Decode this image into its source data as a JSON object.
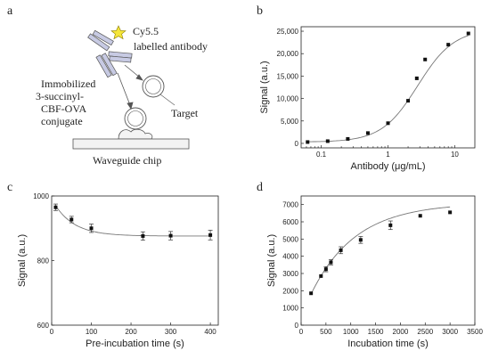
{
  "panel_letters": {
    "a": "a",
    "b": "b",
    "c": "c",
    "d": "d"
  },
  "schematic": {
    "label_dye": "Cy5.5",
    "label_antibody": "labelled antibody",
    "label_immobilized": [
      "Immobilized",
      "3-succinyl-",
      "CBF-OVA",
      "conjugate"
    ],
    "label_target": "Target",
    "label_chip": "Waveguide chip",
    "colors": {
      "star": "#f5e63a",
      "antibody": "#8a8fb8",
      "outline": "#555555",
      "chip": "#f2f2f2"
    }
  },
  "chart_data": [
    {
      "panel": "b",
      "type": "scatter",
      "xlabel": "Antibody (μg/mL)",
      "ylabel": "Signal (a.u.)",
      "xscale": "log",
      "xlim": [
        0.05,
        20
      ],
      "ylim": [
        -1000,
        26000
      ],
      "xticks": [
        0.1,
        1,
        10
      ],
      "xtick_labels": [
        "0.1",
        "1",
        "10"
      ],
      "yticks": [
        0,
        5000,
        10000,
        15000,
        20000,
        25000
      ],
      "ytick_labels": [
        "0",
        "5,000",
        "10,000",
        "15,000",
        "20,000",
        "25,000"
      ],
      "points": [
        {
          "x": 0.0625,
          "y": 300
        },
        {
          "x": 0.125,
          "y": 500
        },
        {
          "x": 0.25,
          "y": 1000
        },
        {
          "x": 0.5,
          "y": 2300
        },
        {
          "x": 1,
          "y": 4500
        },
        {
          "x": 2,
          "y": 9500
        },
        {
          "x": 2.7,
          "y": 14500
        },
        {
          "x": 3.6,
          "y": 18700
        },
        {
          "x": 8,
          "y": 22000
        },
        {
          "x": 16,
          "y": 24500
        }
      ],
      "fit": "sigmoid"
    },
    {
      "panel": "c",
      "type": "scatter",
      "xlabel": "Pre-incubation time (s)",
      "ylabel": "Signal (a.u.)",
      "xlim": [
        0,
        420
      ],
      "ylim": [
        600,
        1000
      ],
      "xticks": [
        0,
        100,
        200,
        300,
        400
      ],
      "xtick_labels": [
        "0",
        "100",
        "200",
        "300",
        "400"
      ],
      "yticks": [
        600,
        800,
        1000
      ],
      "ytick_labels": [
        "600",
        "800",
        "1000"
      ],
      "points": [
        {
          "x": 10,
          "y": 965,
          "err": 10
        },
        {
          "x": 50,
          "y": 927,
          "err": 10
        },
        {
          "x": 100,
          "y": 900,
          "err": 13
        },
        {
          "x": 230,
          "y": 876,
          "err": 13
        },
        {
          "x": 300,
          "y": 877,
          "err": 13
        },
        {
          "x": 400,
          "y": 879,
          "err": 15
        }
      ],
      "fit": "exponential decay"
    },
    {
      "panel": "d",
      "type": "scatter",
      "xlabel": "Incubation time (s)",
      "ylabel": "Signal (a.u.)",
      "xlim": [
        0,
        3500
      ],
      "ylim": [
        0,
        7500
      ],
      "xticks": [
        0,
        500,
        1000,
        1500,
        2000,
        2500,
        3000,
        3500
      ],
      "xtick_labels": [
        "0",
        "500",
        "1000",
        "1500",
        "2000",
        "2500",
        "3000",
        "3500"
      ],
      "yticks": [
        0,
        1000,
        2000,
        3000,
        4000,
        5000,
        6000,
        7000
      ],
      "ytick_labels": [
        "0",
        "1000",
        "2000",
        "3000",
        "4000",
        "5000",
        "6000",
        "7000"
      ],
      "points": [
        {
          "x": 200,
          "y": 1850,
          "err": 0
        },
        {
          "x": 400,
          "y": 2850,
          "err": 0
        },
        {
          "x": 500,
          "y": 3250,
          "err": 150
        },
        {
          "x": 600,
          "y": 3650,
          "err": 150
        },
        {
          "x": 800,
          "y": 4350,
          "err": 200
        },
        {
          "x": 1200,
          "y": 4950,
          "err": 200
        },
        {
          "x": 1800,
          "y": 5800,
          "err": 250
        },
        {
          "x": 2400,
          "y": 6350,
          "err": 0
        },
        {
          "x": 3000,
          "y": 6550,
          "err": 0
        }
      ],
      "fit": "saturation"
    }
  ]
}
